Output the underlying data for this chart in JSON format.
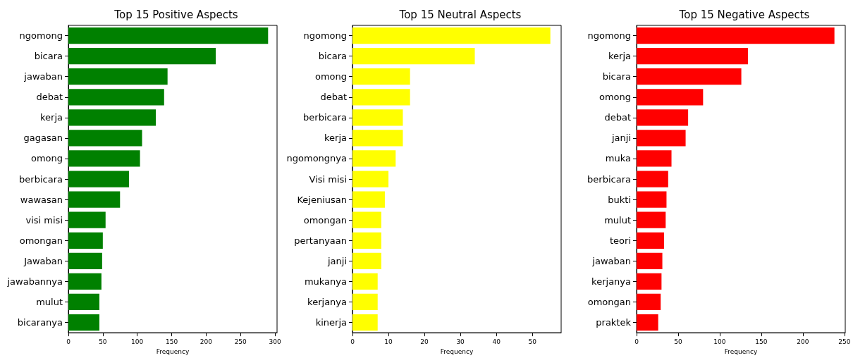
{
  "chart_data": [
    {
      "type": "bar",
      "orientation": "horizontal",
      "title": "Top 15 Positive Aspects",
      "xlabel": "Frequency",
      "categories": [
        "ngomong",
        "bicara",
        "jawaban",
        "debat",
        "kerja",
        "gagasan",
        "omong",
        "berbicara",
        "wawasan",
        "visi misi",
        "omongan",
        "Jawaban",
        "jawabannya",
        "mulut",
        "bicaranya"
      ],
      "values": [
        290,
        214,
        144,
        139,
        127,
        107,
        104,
        88,
        75,
        54,
        50,
        49,
        48,
        45,
        45
      ],
      "color": "#008000",
      "xlim": [
        0,
        303
      ],
      "xticks": [
        0,
        50,
        100,
        150,
        200,
        250,
        300
      ],
      "grid": false
    },
    {
      "type": "bar",
      "orientation": "horizontal",
      "title": "Top 15 Neutral Aspects",
      "xlabel": "Frequency",
      "categories": [
        "ngomong",
        "bicara",
        "omong",
        "debat",
        "berbicara",
        "kerja",
        "ngomongnya",
        "Visi misi",
        "Kejeniusan",
        "omongan",
        "pertanyaan",
        "janji",
        "mukanya",
        "kerjanya",
        "kinerja"
      ],
      "values": [
        55,
        34,
        16,
        16,
        14,
        14,
        12,
        10,
        9,
        8,
        8,
        8,
        7,
        7,
        7
      ],
      "color": "#ffff00",
      "xlim": [
        0,
        58
      ],
      "xticks": [
        0,
        10,
        20,
        30,
        40,
        50
      ],
      "grid": false
    },
    {
      "type": "bar",
      "orientation": "horizontal",
      "title": "Top 15 Negative Aspects",
      "xlabel": "Frequency",
      "categories": [
        "ngomong",
        "kerja",
        "bicara",
        "omong",
        "debat",
        "janji",
        "muka",
        "berbicara",
        "bukti",
        "mulut",
        "teori",
        "jawaban",
        "kerjanya",
        "omongan",
        "praktek"
      ],
      "values": [
        238,
        134,
        126,
        80,
        62,
        59,
        42,
        38,
        36,
        35,
        33,
        31,
        30,
        29,
        26
      ],
      "color": "#ff0000",
      "xlim": [
        0,
        251
      ],
      "xticks": [
        0,
        50,
        100,
        150,
        200,
        250
      ],
      "grid": false
    }
  ]
}
